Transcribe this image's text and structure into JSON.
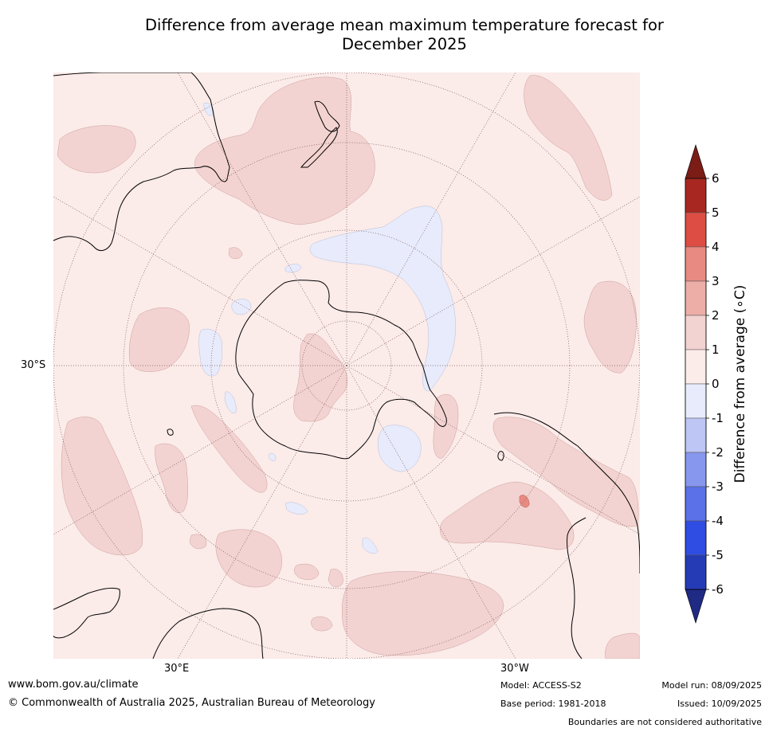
{
  "title": {
    "line1": "Difference from average mean maximum temperature forecast for",
    "line2": "December 2025"
  },
  "map": {
    "projection": "south-polar-stereographic",
    "lat_label": "30°S",
    "lon_labels": {
      "east": "30°E",
      "west": "30°W"
    },
    "land_outline_color": "#000000",
    "graticule_color": "#7a5a5a"
  },
  "colorbar": {
    "label": "Difference from average (∘C)",
    "ticks": [
      "6",
      "5",
      "4",
      "3",
      "2",
      "1",
      "0",
      "-1",
      "-2",
      "-3",
      "-4",
      "-5",
      "-6"
    ],
    "bins_top_to_bottom": [
      {
        "range": "5 to 6",
        "color": "#a82721"
      },
      {
        "range": "4 to 5",
        "color": "#dd4d43"
      },
      {
        "range": "3 to 4",
        "color": "#e88a81"
      },
      {
        "range": "2 to 3",
        "color": "#edaea8"
      },
      {
        "range": "1 to 2",
        "color": "#f3d3d1"
      },
      {
        "range": "0 to 1",
        "color": "#fbebe9"
      },
      {
        "range": "-1 to 0",
        "color": "#e7ebfb"
      },
      {
        "range": "-2 to -1",
        "color": "#bdc6f4"
      },
      {
        "range": "-3 to -2",
        "color": "#8797ee"
      },
      {
        "range": "-4 to -3",
        "color": "#5a71e8"
      },
      {
        "range": "-5 to -4",
        "color": "#2f4de2"
      },
      {
        "range": "-6 to -5",
        "color": "#253bb5"
      }
    ],
    "extend_high_color": "#7b1c17",
    "extend_low_color": "#1f2a85"
  },
  "field_colors": {
    "base": "#fbebe9",
    "warm": "#f3d3d1",
    "warmer": "#e88a81",
    "cool": "#e7ebfb"
  },
  "footer": {
    "url": "www.bom.gov.au/climate",
    "copyright": "© Commonwealth of Australia 2025, Australian Bureau of Meteorology",
    "model": "Model: ACCESS-S2",
    "base_period": "Base period: 1981-2018",
    "model_run": "Model run: 08/09/2025",
    "issued": "Issued: 10/09/2025",
    "disclaimer": "Boundaries are not considered authoritative"
  }
}
